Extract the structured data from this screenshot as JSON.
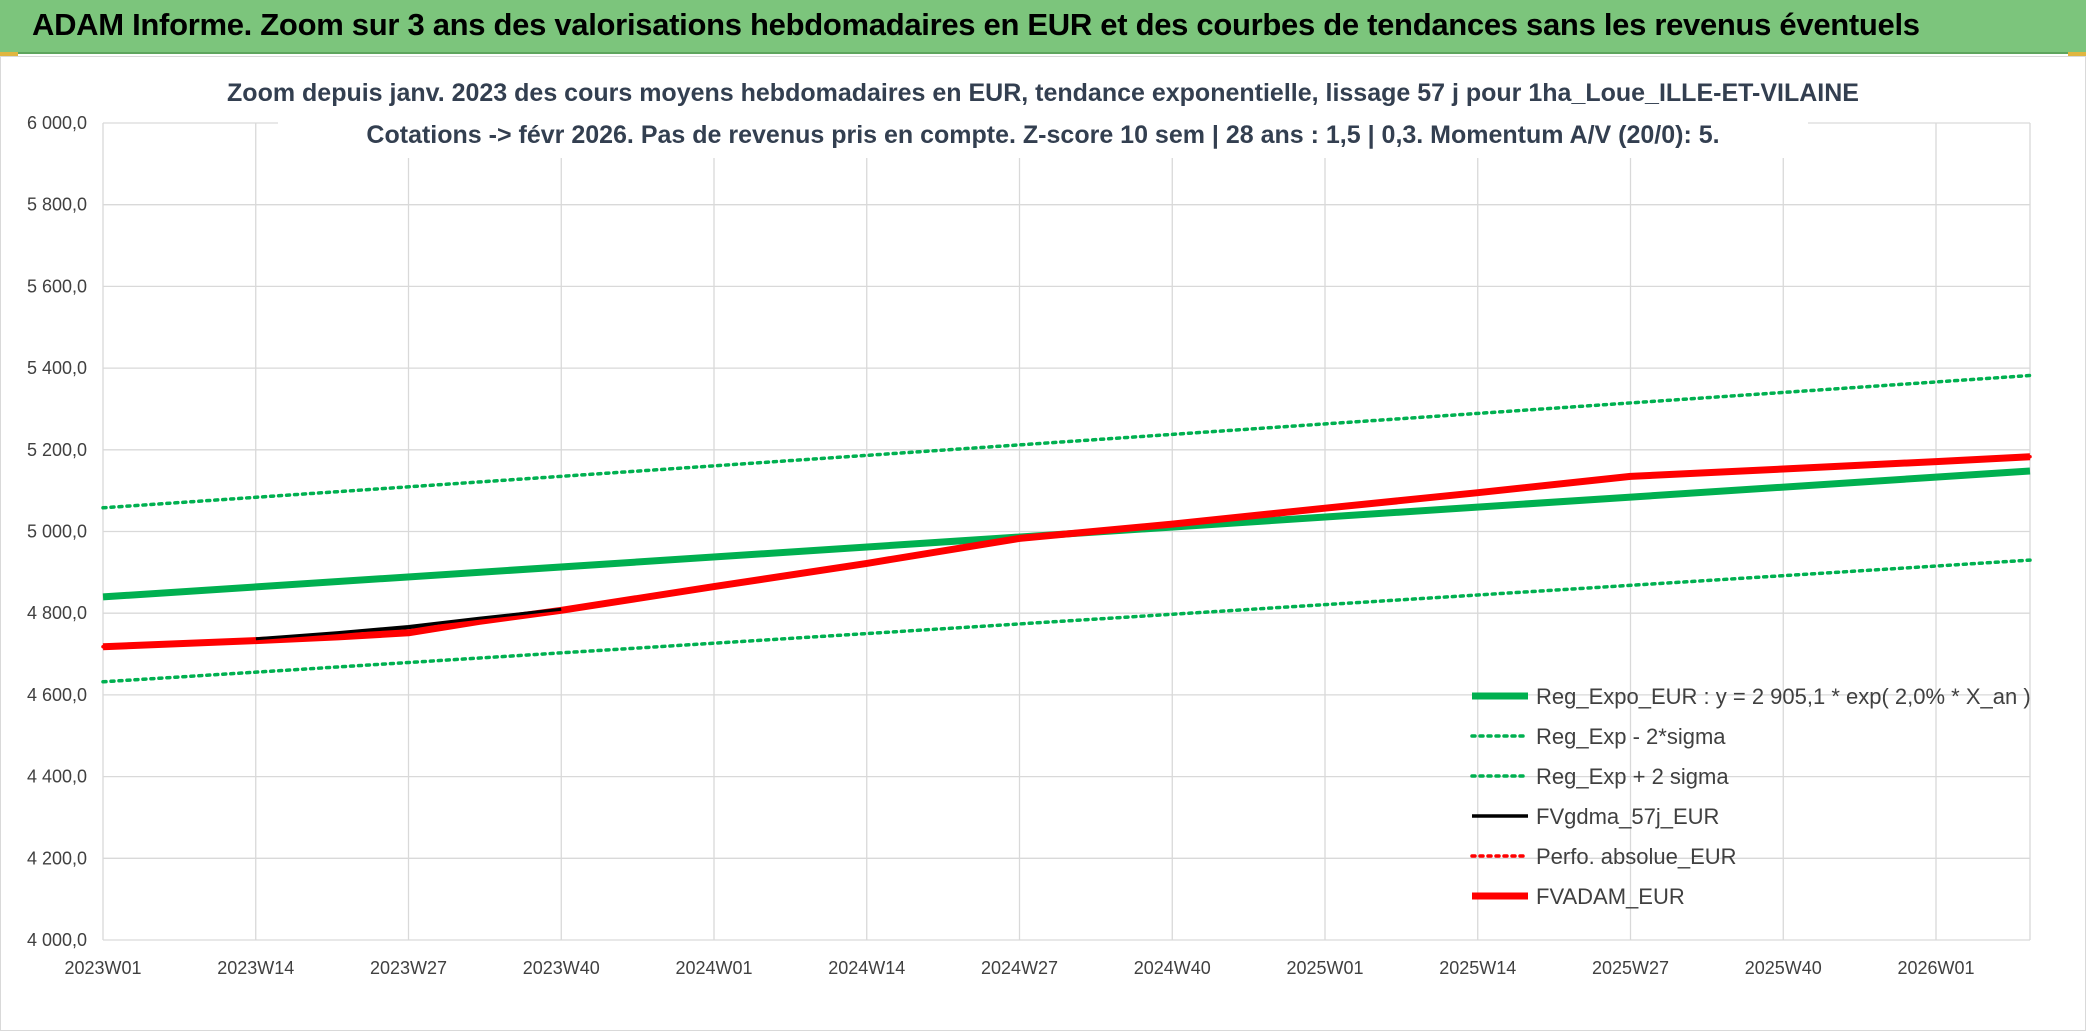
{
  "banner": {
    "title": "ADAM Informe. Zoom sur 3 ans des valorisations hebdomadaires en EUR et des courbes de tendances sans les revenus éventuels"
  },
  "colors": {
    "banner_bg": "#7cc57c",
    "green": "#00b050",
    "black": "#000000",
    "red": "#ff0000",
    "grid": "#d9d9d9",
    "title_text": "#333f50"
  },
  "chart_data": {
    "type": "line",
    "title_line1": "Zoom depuis janv. 2023 des cours moyens hebdomadaires en EUR, tendance exponentielle, lissage 57 j pour 1ha_Loue_ILLE-ET-VILAINE",
    "title_line2": "Cotations -> févr 2026. Pas de revenus pris en compte. Z-score 10 sem | 28 ans : 1,5 | 0,3. Momentum A/V (20/0): 5.",
    "x_tick_labels": [
      "2023W01",
      "2023W14",
      "2023W27",
      "2023W40",
      "2024W01",
      "2024W14",
      "2024W27",
      "2024W40",
      "2025W01",
      "2025W14",
      "2025W27",
      "2025W40",
      "2026W01"
    ],
    "x_range_weeks": [
      0,
      164
    ],
    "ylim": [
      4000,
      6000
    ],
    "y_tick_values": [
      4000,
      4200,
      4400,
      4600,
      4800,
      5000,
      5200,
      5400,
      5600,
      5800,
      6000
    ],
    "y_tick_labels": [
      "4 000,0",
      "4 200,0",
      "4 400,0",
      "4 600,0",
      "4 800,0",
      "5 000,0",
      "5 200,0",
      "5 400,0",
      "5 600,0",
      "5 800,0",
      "6 000,0"
    ],
    "grid": true,
    "legend_position": "bottom-right",
    "series": [
      {
        "name": "Reg_Expo_EUR : y = 2 905,1 * exp( 2,0% *  X_an )",
        "style": "solid-thick",
        "color": "#00b050",
        "x": [
          0,
          164
        ],
        "y": [
          4840,
          5148
        ]
      },
      {
        "name": "Reg_Exp - 2*sigma",
        "style": "dotted",
        "color": "#00b050",
        "x": [
          0,
          164
        ],
        "y": [
          4632,
          4930
        ]
      },
      {
        "name": "Reg_Exp + 2 sigma",
        "style": "dotted",
        "color": "#00b050",
        "x": [
          0,
          164
        ],
        "y": [
          5058,
          5382
        ]
      },
      {
        "name": "FVgdma_57j_EUR",
        "style": "solid",
        "color": "#000000",
        "x": [
          0,
          13,
          20,
          26,
          32,
          39,
          52,
          65,
          78,
          91,
          104,
          117,
          130,
          143,
          156,
          164
        ],
        "y": [
          4718,
          4735,
          4750,
          4765,
          4785,
          4807,
          4865,
          4920,
          4980,
          5015,
          5055,
          5093,
          5133,
          5152,
          5170,
          5183
        ]
      },
      {
        "name": "Perfo. absolue_EUR",
        "style": "dotted",
        "color": "#ff0000",
        "x": [
          0,
          13,
          20,
          26,
          32,
          39,
          52,
          65,
          78,
          91,
          104,
          117,
          130,
          143,
          156,
          164
        ],
        "y": [
          4718,
          4733,
          4742,
          4752,
          4780,
          4807,
          4865,
          4922,
          4983,
          5018,
          5057,
          5095,
          5135,
          5153,
          5171,
          5183
        ]
      },
      {
        "name": "FVADAM_EUR",
        "style": "solid-thick",
        "color": "#ff0000",
        "x": [
          0,
          13,
          20,
          26,
          32,
          39,
          52,
          65,
          78,
          91,
          104,
          117,
          130,
          143,
          156,
          164
        ],
        "y": [
          4718,
          4733,
          4742,
          4752,
          4780,
          4807,
          4865,
          4922,
          4983,
          5018,
          5057,
          5095,
          5135,
          5153,
          5171,
          5183
        ]
      }
    ]
  }
}
